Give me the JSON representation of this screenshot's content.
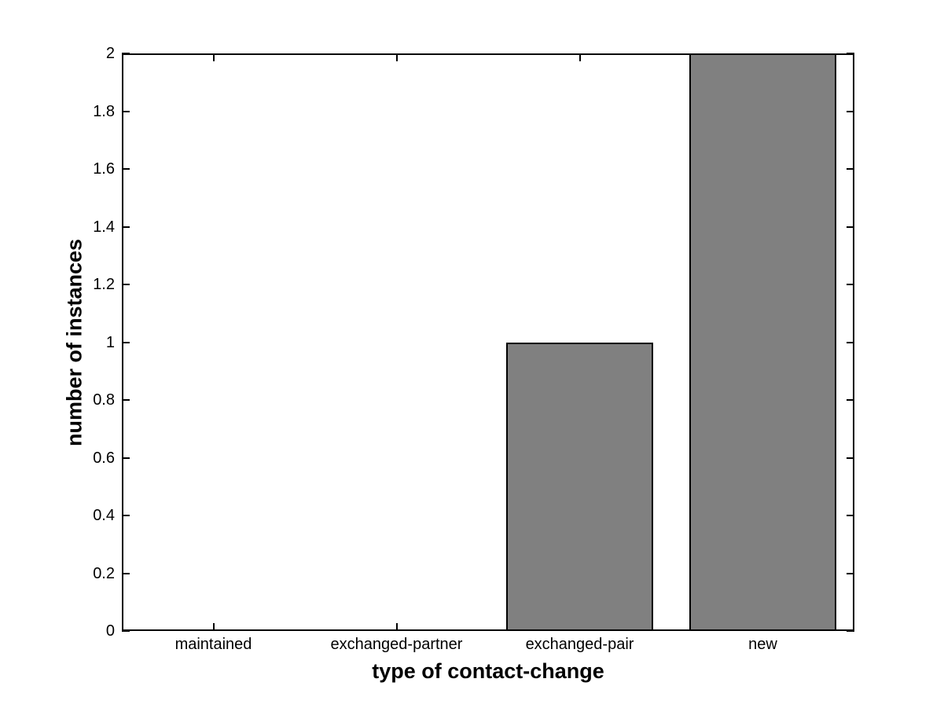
{
  "figure": {
    "background_color": "#ffffff",
    "axis_color": "#000000",
    "text_color": "#000000"
  },
  "chart_data": {
    "type": "bar",
    "title": "",
    "xlabel": "type of contact-change",
    "ylabel": "number of instances",
    "categories": [
      "maintained",
      "exchanged-partner",
      "exchanged-pair",
      "new"
    ],
    "values": [
      0,
      0,
      1,
      2
    ],
    "ylim": [
      0,
      2
    ],
    "yticks": [
      0,
      0.2,
      0.4,
      0.6,
      0.8,
      1,
      1.2,
      1.4,
      1.6,
      1.8,
      2
    ],
    "ytick_labels": [
      "0",
      "0.2",
      "0.4",
      "0.6",
      "0.8",
      "1",
      "1.2",
      "1.4",
      "1.6",
      "1.8",
      "2"
    ],
    "bar_width_fraction": 0.8,
    "bar_fill_color": "#808080",
    "bar_edge_color": "#000000",
    "grid": false,
    "legend": null,
    "tick_direction": "in",
    "box": true
  }
}
